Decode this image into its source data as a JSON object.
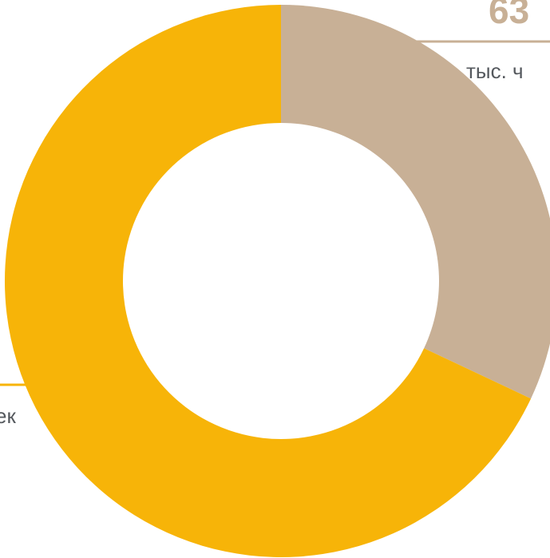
{
  "chart_data": {
    "type": "pie",
    "donut": true,
    "title": "",
    "categories": [
      "",
      ""
    ],
    "values": [
      32,
      68
    ],
    "colors": [
      "#c8b096",
      "#f7b408"
    ],
    "annotations": [
      {
        "number": "63",
        "unit": "тыс. ч"
      },
      {
        "number": "",
        "unit": "ек"
      }
    ],
    "legend": "none"
  }
}
